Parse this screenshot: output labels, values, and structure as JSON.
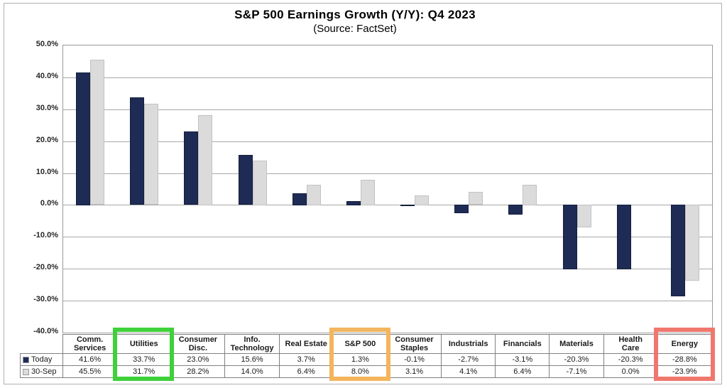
{
  "title": "S&P 500 Earnings Growth (Y/Y): Q4 2023",
  "subtitle": "(Source: FactSet)",
  "chart_data": {
    "type": "bar",
    "categories": [
      "Comm.\nServices",
      "Utilities",
      "Consumer\nDisc.",
      "Info.\nTechnology",
      "Real Estate",
      "S&P 500",
      "Consumer\nStaples",
      "Industrials",
      "Financials",
      "Materials",
      "Health\nCare",
      "Energy"
    ],
    "series": [
      {
        "name": "Today",
        "color": "#1e2b55",
        "border_color": "#141d3c",
        "values": [
          41.6,
          33.7,
          23.0,
          15.6,
          3.7,
          1.3,
          -0.1,
          -2.7,
          -3.1,
          -20.3,
          -20.3,
          -28.8
        ]
      },
      {
        "name": "30-Sep",
        "color": "#dbdbdb",
        "border_color": "#c2c2c2",
        "values": [
          45.5,
          31.7,
          28.2,
          14.0,
          6.4,
          8.0,
          3.1,
          4.1,
          6.4,
          -7.1,
          0.0,
          -23.9
        ]
      }
    ],
    "ylim": [
      -40,
      50
    ],
    "ytick_step": 10,
    "ytick_labels": [
      "50.0%",
      "40.0%",
      "30.0%",
      "20.0%",
      "10.0%",
      "0.0%",
      "-10.0%",
      "-20.0%",
      "-30.0%",
      "-40.0%"
    ],
    "grid": true,
    "legend_position": "table-left"
  },
  "table": {
    "header": [
      "Comm.\nServices",
      "Utilities",
      "Consumer\nDisc.",
      "Info.\nTechnology",
      "Real Estate",
      "S&P 500",
      "Consumer\nStaples",
      "Industrials",
      "Financials",
      "Materials",
      "Health\nCare",
      "Energy"
    ],
    "rows": [
      {
        "label": "Today",
        "swatch_color": "#1e2b55",
        "values": [
          "41.6%",
          "33.7%",
          "23.0%",
          "15.6%",
          "3.7%",
          "1.3%",
          "-0.1%",
          "-2.7%",
          "-3.1%",
          "-20.3%",
          "-20.3%",
          "-28.8%"
        ]
      },
      {
        "label": "30-Sep",
        "swatch_color": "#dbdbdb",
        "values": [
          "45.5%",
          "31.7%",
          "28.2%",
          "14.0%",
          "6.4%",
          "8.0%",
          "3.1%",
          "4.1%",
          "6.4%",
          "-7.1%",
          "0.0%",
          "-23.9%"
        ]
      }
    ]
  },
  "highlights": [
    {
      "category": "Utilities",
      "column_index": 1,
      "color": "#3ed13a"
    },
    {
      "category": "S&P 500",
      "column_index": 5,
      "color": "#f3b55d"
    },
    {
      "category": "Energy",
      "column_index": 11,
      "color": "#f0776d"
    }
  ]
}
